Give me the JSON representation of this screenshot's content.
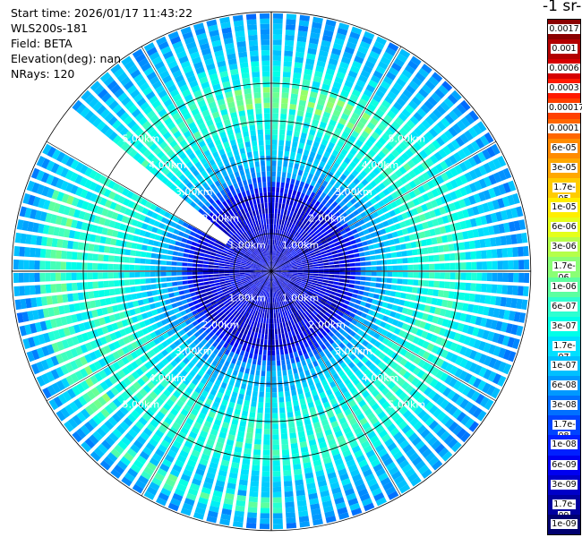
{
  "info": {
    "start_time": "Start time: 2026/01/17 11:43:22",
    "instrument": "WLS200s-181",
    "field": "Field: BETA",
    "elevation": "Elevation(deg): nan",
    "nrays": "NRays: 120"
  },
  "colorbar": {
    "title": "-1 sr-",
    "labels": [
      "0.0017",
      "0.001",
      "0.0006",
      "0.0003",
      "0.00017",
      "0.0001",
      "6e-05",
      "3e-05",
      "1.7e-05",
      "1e-05",
      "6e-06",
      "3e-06",
      "1.7e-06",
      "1e-06",
      "6e-07",
      "3e-07",
      "1.7e-07",
      "1e-07",
      "6e-08",
      "3e-08",
      "1.7e-08",
      "1e-08",
      "6e-09",
      "3e-09",
      "1.7e-09",
      "1e-09"
    ],
    "colors": [
      "#8b0000",
      "#b30000",
      "#d60000",
      "#ff1a00",
      "#ff4000",
      "#ff6600",
      "#ff8c00",
      "#ffa800",
      "#ffcc00",
      "#ffee00",
      "#e5ff1a",
      "#b5ff4a",
      "#8aff75",
      "#5cffa0",
      "#2effd0",
      "#00ffe8",
      "#00e0ff",
      "#00c0ff",
      "#0099ff",
      "#0070ff",
      "#0044ff",
      "#0020ff",
      "#0000f0",
      "#0000c8",
      "#00009f",
      "#000070"
    ]
  },
  "chart_data": {
    "type": "heatmap",
    "projection": "polar (PPI scan)",
    "field": "BETA",
    "n_rays": 120,
    "range_rings_km": [
      1.0,
      2.0,
      3.0,
      4.0,
      5.0
    ],
    "ring_labels": [
      "1.00km",
      "2.00km",
      "3.00km",
      "4.00km",
      "5.00km"
    ],
    "max_range_km": 6.9,
    "gap_azimuth_deg": 305,
    "value_pattern": [
      {
        "range_km": [
          0.0,
          2.0
        ],
        "value": "3e-09"
      },
      {
        "range_km": [
          2.0,
          2.6
        ],
        "value": "3e-08"
      },
      {
        "range_km": [
          2.6,
          3.6
        ],
        "value": "1.7e-07"
      },
      {
        "range_km": [
          3.6,
          5.5
        ],
        "value": "3e-07"
      },
      {
        "range_km": [
          5.5,
          6.9
        ],
        "value": "1e-07"
      }
    ],
    "colorscale": "jet, 1e-09 to 0.0017"
  }
}
